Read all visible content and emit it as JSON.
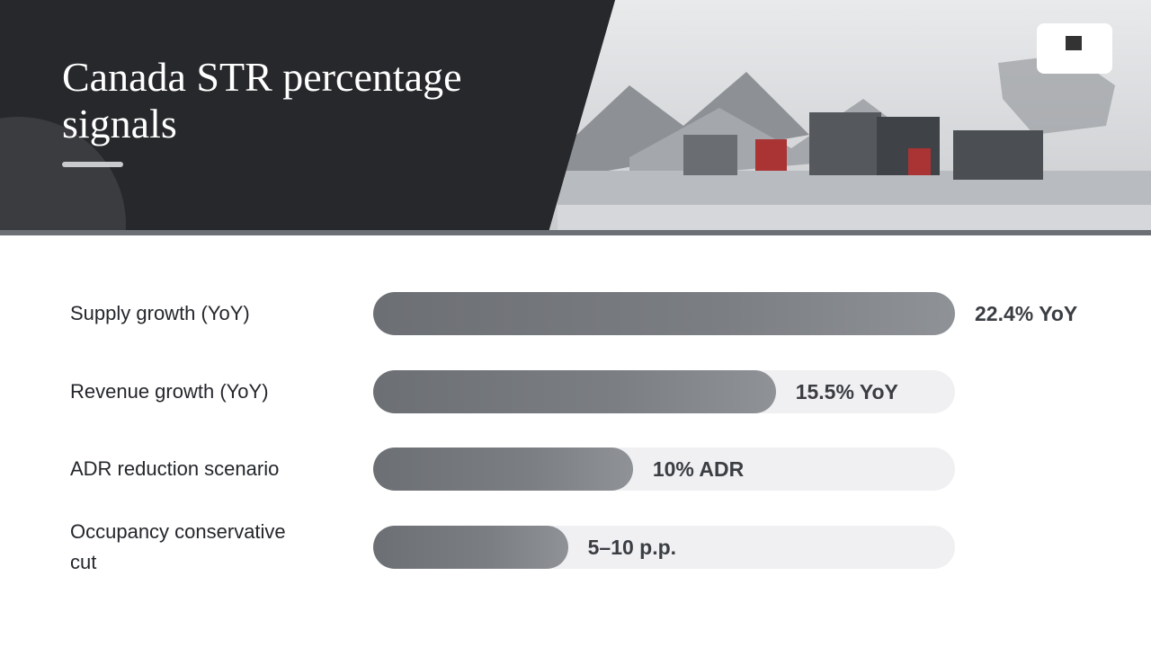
{
  "chart_data": {
    "type": "bar",
    "orientation": "horizontal",
    "title": "Canada STR percentage signals",
    "categories": [
      "Supply growth (YoY)",
      "Revenue growth (YoY)",
      "ADR reduction scenario",
      "Occupancy conservative cut"
    ],
    "values": [
      22.4,
      15.5,
      10,
      7.5
    ],
    "value_labels": [
      "22.4% YoY",
      "15.5% YoY",
      "10% ADR",
      "5–10 p.p."
    ],
    "xlim": [
      0,
      22.4
    ],
    "color": "#7b7e83"
  }
}
